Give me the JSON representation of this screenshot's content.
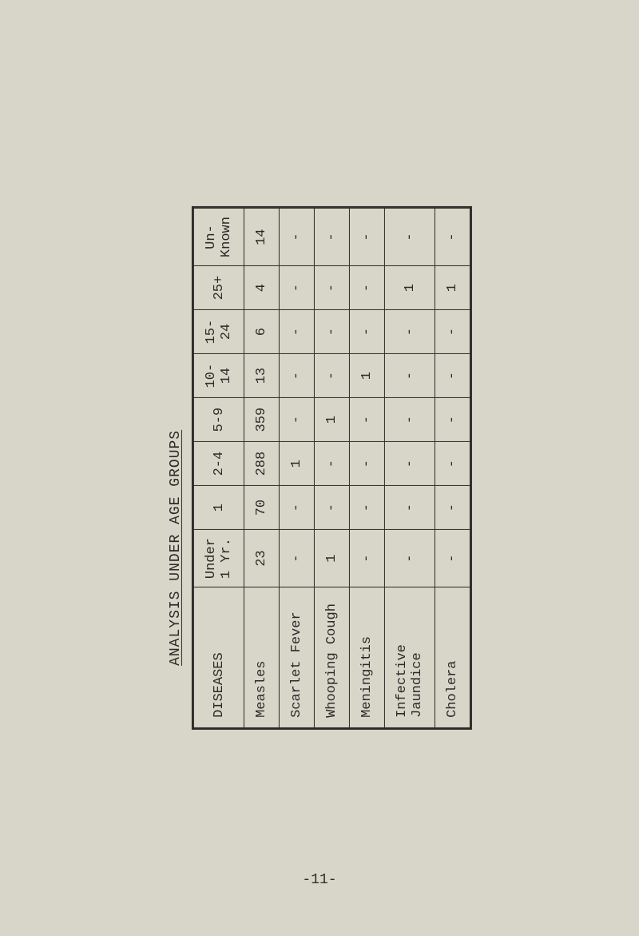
{
  "title": "ANALYSIS UNDER AGE GROUPS",
  "page_number": "-11-",
  "table": {
    "columns": [
      "DISEASES",
      "Under\n1 Yr.",
      "1",
      "2-4",
      "5-9",
      "10-\n14",
      "15-\n24",
      "25+",
      "Un-\nKnown"
    ],
    "rows": [
      {
        "name": "Measles",
        "values": [
          "23",
          "70",
          "288",
          "359",
          "13",
          "6",
          "4",
          "14"
        ]
      },
      {
        "name": "Scarlet Fever",
        "values": [
          "-",
          "-",
          "1",
          "-",
          "-",
          "-",
          "-",
          "-"
        ]
      },
      {
        "name": "Whooping Cough",
        "values": [
          "1",
          "-",
          "-",
          "1",
          "-",
          "-",
          "-",
          "-"
        ]
      },
      {
        "name": "Meningitis",
        "values": [
          "-",
          "-",
          "-",
          "-",
          "1",
          "-",
          "-",
          "-"
        ]
      },
      {
        "name": "Infective\nJaundice",
        "values": [
          "-",
          "-",
          "-",
          "-",
          "-",
          "-",
          "1",
          "-"
        ]
      },
      {
        "name": "Cholera",
        "values": [
          "-",
          "-",
          "-",
          "-",
          "-",
          "-",
          "1",
          "-"
        ]
      }
    ]
  },
  "styling": {
    "background_color": "#d8d6c8",
    "text_color": "#2a2a28",
    "border_color": "#2a2a28",
    "font_family": "Courier New",
    "title_fontsize": 18,
    "cell_fontsize": 17,
    "rotation_deg": -90
  }
}
